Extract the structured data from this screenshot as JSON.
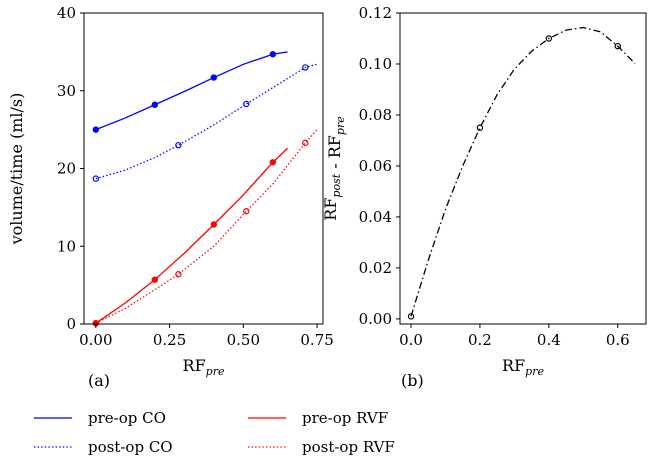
{
  "chart_data": [
    {
      "type": "line",
      "panel_label": "(a)",
      "xlabel": {
        "base": "RF",
        "sub": "pre"
      },
      "ylabel": "volume/time (ml/s)",
      "xlim": [
        -0.04,
        0.77
      ],
      "ylim": [
        0,
        40
      ],
      "xticks": [
        0.0,
        0.25,
        0.5,
        0.75
      ],
      "xtick_labels": [
        "0.00",
        "0.25",
        "0.50",
        "0.75"
      ],
      "yticks": [
        0,
        10,
        20,
        30,
        40
      ],
      "ytick_labels": [
        "0",
        "10",
        "20",
        "30",
        "40"
      ],
      "grid": false,
      "series": [
        {
          "name": "pre-op CO",
          "color": "#0000ff",
          "style": "solid",
          "curve": [
            [
              0.0,
              25.0
            ],
            [
              0.1,
              26.5
            ],
            [
              0.2,
              28.2
            ],
            [
              0.3,
              29.9
            ],
            [
              0.4,
              31.7
            ],
            [
              0.5,
              33.4
            ],
            [
              0.6,
              34.7
            ],
            [
              0.65,
              35.0
            ]
          ],
          "markers": [
            [
              0.0,
              25.0
            ],
            [
              0.2,
              28.2
            ],
            [
              0.4,
              31.7
            ],
            [
              0.6,
              34.7
            ]
          ],
          "marker_fill": true
        },
        {
          "name": "post-op CO",
          "color": "#0000ff",
          "style": "dotted",
          "curve": [
            [
              0.0,
              18.7
            ],
            [
              0.1,
              19.8
            ],
            [
              0.2,
              21.4
            ],
            [
              0.28,
              23.0
            ],
            [
              0.4,
              25.6
            ],
            [
              0.51,
              28.3
            ],
            [
              0.6,
              30.4
            ],
            [
              0.71,
              33.0
            ],
            [
              0.75,
              33.4
            ]
          ],
          "markers": [
            [
              0.0,
              18.7
            ],
            [
              0.28,
              23.0
            ],
            [
              0.51,
              28.3
            ],
            [
              0.71,
              33.0
            ]
          ],
          "marker_fill": false
        },
        {
          "name": "pre-op RVF",
          "color": "#ff0000",
          "style": "solid",
          "curve": [
            [
              0.0,
              0.1
            ],
            [
              0.1,
              2.7
            ],
            [
              0.2,
              5.7
            ],
            [
              0.3,
              9.1
            ],
            [
              0.4,
              12.8
            ],
            [
              0.5,
              16.6
            ],
            [
              0.6,
              20.8
            ],
            [
              0.65,
              22.6
            ]
          ],
          "markers": [
            [
              0.0,
              0.1
            ],
            [
              0.2,
              5.7
            ],
            [
              0.4,
              12.8
            ],
            [
              0.6,
              20.8
            ]
          ],
          "marker_fill": true
        },
        {
          "name": "post-op RVF",
          "color": "#ff0000",
          "style": "dotted",
          "curve": [
            [
              0.0,
              0.1
            ],
            [
              0.1,
              2.0
            ],
            [
              0.2,
              4.4
            ],
            [
              0.28,
              6.4
            ],
            [
              0.4,
              10.0
            ],
            [
              0.51,
              14.5
            ],
            [
              0.6,
              18.0
            ],
            [
              0.71,
              23.3
            ],
            [
              0.75,
              25.0
            ]
          ],
          "markers": [
            [
              0.0,
              0.1
            ],
            [
              0.28,
              6.4
            ],
            [
              0.51,
              14.5
            ],
            [
              0.71,
              23.3
            ]
          ],
          "marker_fill": false
        }
      ]
    },
    {
      "type": "line",
      "panel_label": "(b)",
      "xlabel": {
        "base": "RF",
        "sub": "pre"
      },
      "ylabel": {
        "parts": [
          {
            "base": "RF",
            "sub": "post"
          },
          {
            "text": " - "
          },
          {
            "base": "RF",
            "sub": "pre"
          }
        ]
      },
      "xlim": [
        -0.032,
        0.682
      ],
      "ylim": [
        -0.002,
        0.12
      ],
      "xticks": [
        0.0,
        0.2,
        0.4,
        0.6
      ],
      "xtick_labels": [
        "0.0",
        "0.2",
        "0.4",
        "0.6"
      ],
      "yticks": [
        0.0,
        0.02,
        0.04,
        0.06,
        0.08,
        0.1,
        0.12
      ],
      "ytick_labels": [
        "0.00",
        "0.02",
        "0.04",
        "0.06",
        "0.08",
        "0.10",
        "0.12"
      ],
      "grid": false,
      "series": [
        {
          "color": "#000000",
          "style": "dashdot",
          "curve": [
            [
              0.0,
              0.001
            ],
            [
              0.05,
              0.023
            ],
            [
              0.1,
              0.043
            ],
            [
              0.15,
              0.06
            ],
            [
              0.2,
              0.075
            ],
            [
              0.25,
              0.088
            ],
            [
              0.3,
              0.098
            ],
            [
              0.35,
              0.105
            ],
            [
              0.4,
              0.11
            ],
            [
              0.45,
              0.1133
            ],
            [
              0.5,
              0.1143
            ],
            [
              0.55,
              0.1126
            ],
            [
              0.6,
              0.107
            ],
            [
              0.65,
              0.1002
            ]
          ],
          "markers": [
            [
              0.0,
              0.001
            ],
            [
              0.2,
              0.075
            ],
            [
              0.4,
              0.11
            ],
            [
              0.6,
              0.107
            ]
          ],
          "marker_fill": false
        }
      ]
    }
  ],
  "legend": {
    "placement": "bottom",
    "entries": [
      {
        "label": "pre-op CO",
        "color": "#0000ff",
        "style": "solid"
      },
      {
        "label": "pre-op RVF",
        "color": "#ff0000",
        "style": "solid"
      },
      {
        "label": "post-op CO",
        "color": "#0000ff",
        "style": "dotted"
      },
      {
        "label": "post-op RVF",
        "color": "#ff0000",
        "style": "dotted"
      }
    ]
  }
}
